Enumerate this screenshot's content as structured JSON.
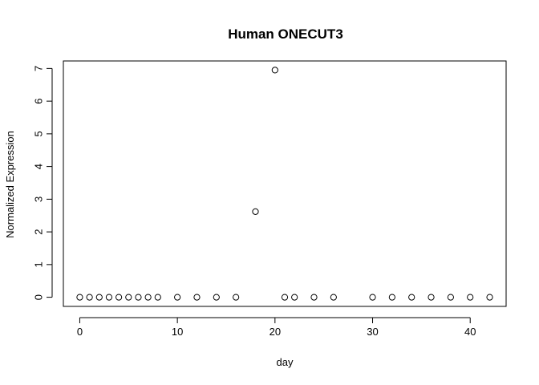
{
  "chart_data": {
    "type": "scatter",
    "title": "Human ONECUT3",
    "xlabel": "day",
    "ylabel": "Normalized Expression",
    "xlim": [
      -1.68,
      43.68
    ],
    "ylim": [
      -0.28,
      7.23
    ],
    "xticks": [
      0,
      10,
      20,
      30,
      40
    ],
    "yticks": [
      0,
      1,
      2,
      3,
      4,
      5,
      6,
      7
    ],
    "grid": false,
    "marker": "open-circle",
    "color": "#000000",
    "x": [
      0,
      1,
      2,
      3,
      4,
      5,
      6,
      7,
      8,
      10,
      12,
      14,
      16,
      18,
      20,
      21,
      22,
      24,
      26,
      30,
      32,
      34,
      36,
      38,
      40,
      42
    ],
    "y": [
      0,
      0,
      0,
      0,
      0,
      0,
      0,
      0,
      0,
      0,
      0,
      0,
      0,
      2.62,
      6.95,
      0,
      0,
      0,
      0,
      0,
      0,
      0,
      0,
      0,
      0,
      0
    ]
  }
}
